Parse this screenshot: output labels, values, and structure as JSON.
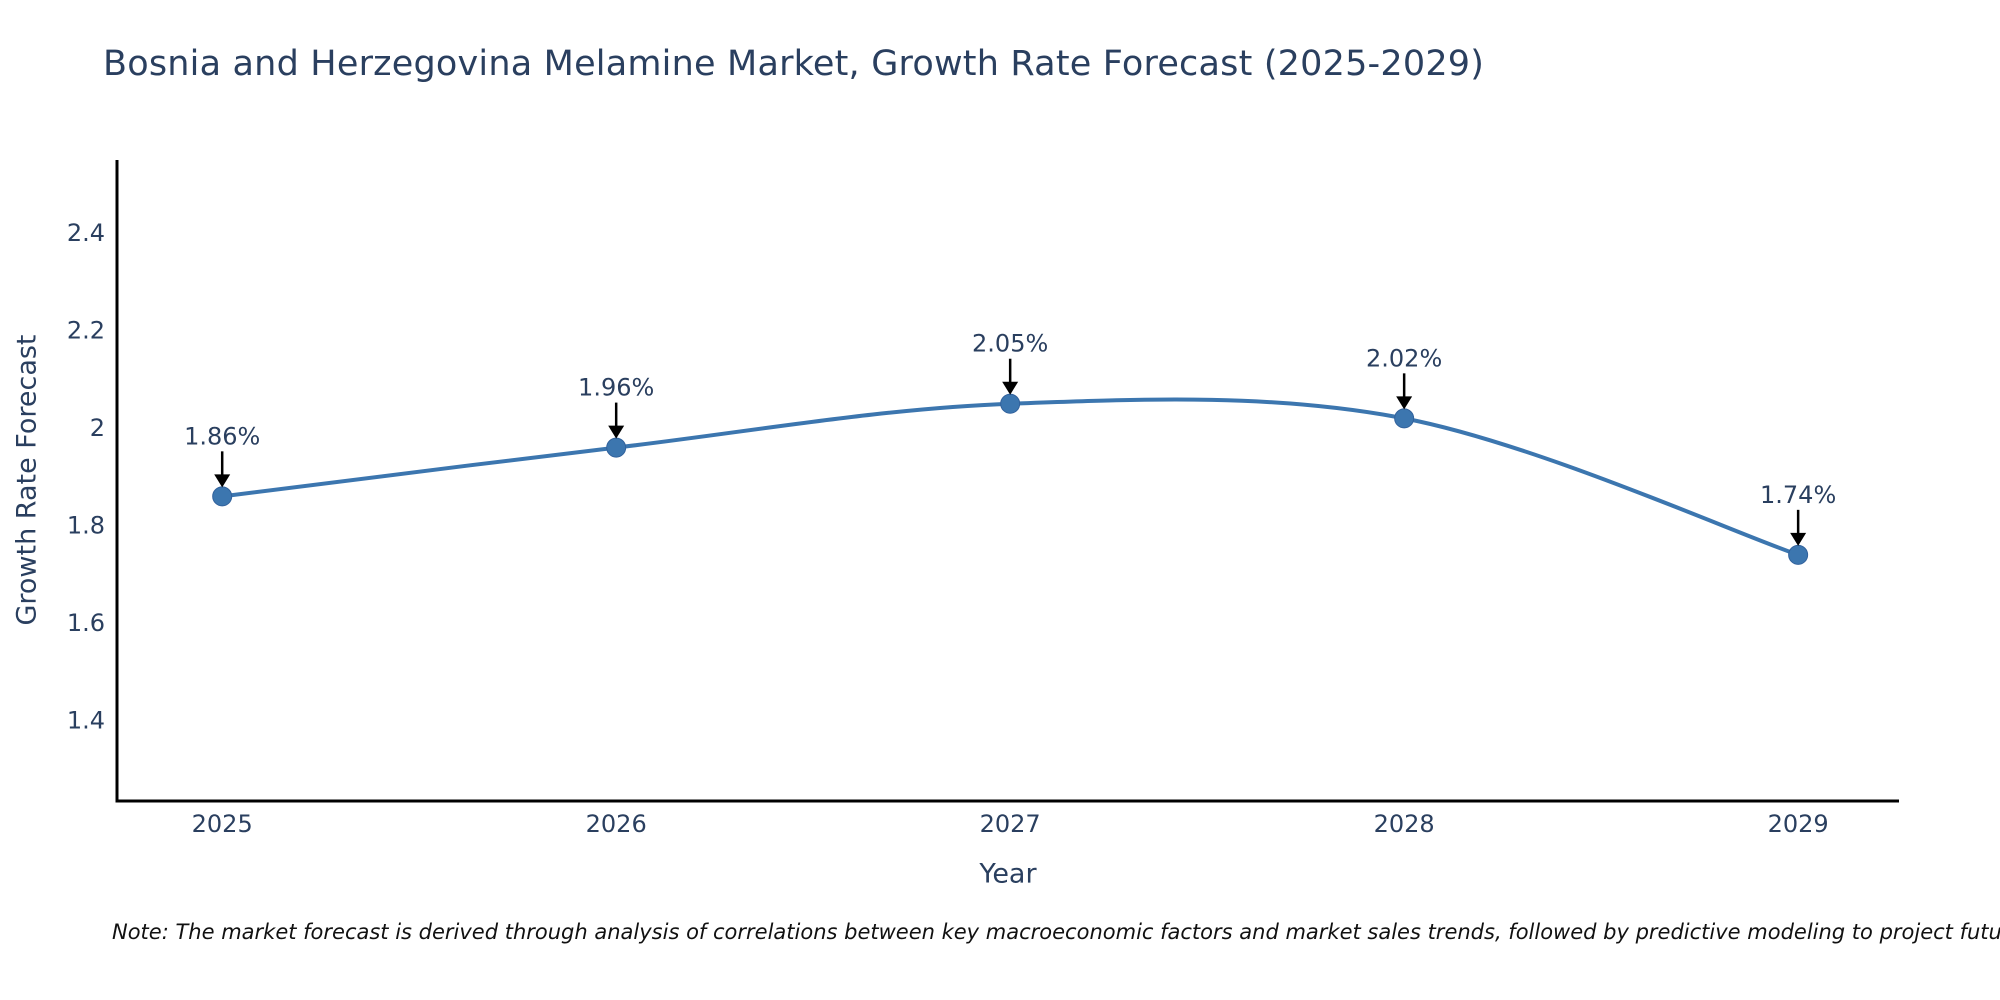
{
  "title": "Bosnia and Herzegovina Melamine Market, Growth Rate Forecast (2025-2029)",
  "note": "Note: The market forecast is derived through analysis of correlations between key macroeconomic factors and market sales trends, followed by predictive modeling to project future sales",
  "chart_data": {
    "type": "line",
    "line_shape": "spline",
    "title": "Bosnia and Herzegovina Melamine Market, Growth Rate Forecast (2025-2029)",
    "xlabel": "Year",
    "ylabel": "Growth Rate Forecast",
    "x": [
      2025,
      2026,
      2027,
      2028,
      2029
    ],
    "series": [
      {
        "name": "Growth Rate Forecast",
        "values": [
          1.86,
          1.96,
          2.05,
          2.02,
          1.74
        ]
      }
    ],
    "point_labels": [
      "1.86%",
      "1.96%",
      "2.05%",
      "2.02%",
      "1.74%"
    ],
    "yticks": [
      1.4,
      1.6,
      1.8,
      2,
      2.2,
      2.4
    ],
    "ytick_labels": [
      "1.4",
      "1.6",
      "1.8",
      "2",
      "2.2",
      "2.4"
    ],
    "x_range": [
      2024.733,
      2029.256
    ],
    "y_range": [
      1.235,
      2.55
    ],
    "grid": false,
    "legend": "none",
    "line_color": "#3c76af",
    "marker_color": "#3c76af",
    "marker_edge_color": "#31619c",
    "arrow_color": "#000000",
    "axis_color": "#000000",
    "text_color": "#2a3f5f",
    "annotation_color": "#2a3f5f",
    "background_color": "#ffffff"
  }
}
